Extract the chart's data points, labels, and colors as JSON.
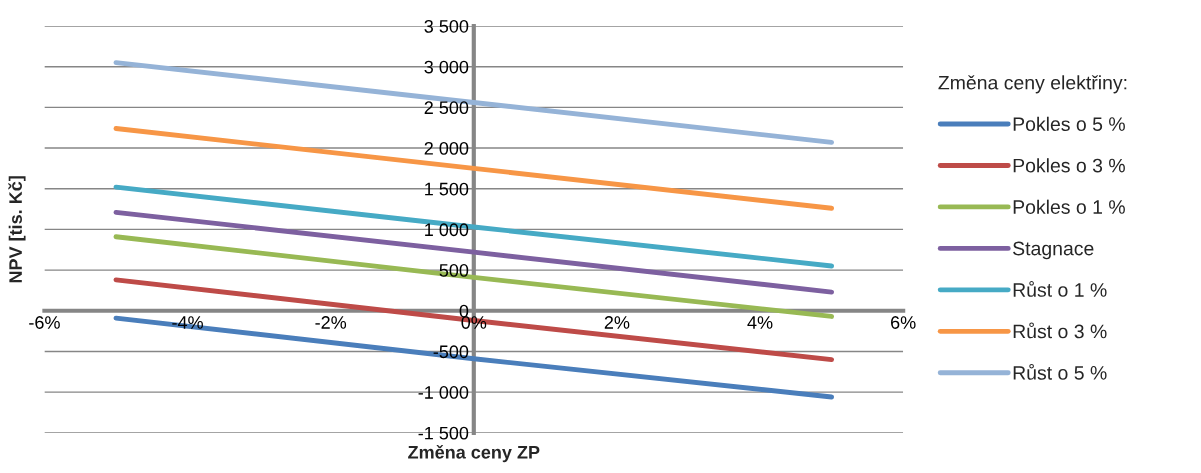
{
  "chart_data": {
    "type": "line",
    "xlabel": "Změna ceny ZP",
    "ylabel": "NPV [tis. Kč]",
    "legend_title": "Změna ceny elektřiny:",
    "legend": "right",
    "grid": "y",
    "marker": "none",
    "line_style": "solid",
    "x": [
      -5,
      0,
      5
    ],
    "series": [
      {
        "name": "Pokles o 5 %",
        "color": "#4a7ebb",
        "values": [
          -90,
          -590,
          -1060
        ]
      },
      {
        "name": "Pokles o 3 %",
        "color": "#be4b48",
        "values": [
          380,
          -120,
          -600
        ]
      },
      {
        "name": "Pokles o 1 %",
        "color": "#98b954",
        "values": [
          910,
          410,
          -70
        ]
      },
      {
        "name": "Stagnace",
        "color": "#7d60a0",
        "values": [
          1210,
          720,
          230
        ]
      },
      {
        "name": "Růst o 1 %",
        "color": "#46aac5",
        "values": [
          1520,
          1030,
          550
        ]
      },
      {
        "name": "Růst o 3 %",
        "color": "#f79646",
        "values": [
          2240,
          1750,
          1260
        ]
      },
      {
        "name": "Růst o 5 %",
        "color": "#95b3d7",
        "values": [
          3050,
          2560,
          2070
        ]
      }
    ],
    "xlim": [
      -6,
      6
    ],
    "xticks": [
      {
        "value": -6,
        "label": "-6%"
      },
      {
        "value": -4,
        "label": "-4%"
      },
      {
        "value": -2,
        "label": "-2%"
      },
      {
        "value": 0,
        "label": "0%"
      },
      {
        "value": 2,
        "label": "2%"
      },
      {
        "value": 4,
        "label": "4%"
      },
      {
        "value": 6,
        "label": "6%"
      }
    ],
    "ylim": [
      -1500,
      3500
    ],
    "yticks": [
      {
        "value": -1500,
        "label": "-1 500"
      },
      {
        "value": -1000,
        "label": "-1 000"
      },
      {
        "value": -500,
        "label": "-500"
      },
      0,
      500,
      {
        "value": 1000,
        "label": "1 000"
      },
      {
        "value": 1500,
        "label": "1 500"
      },
      {
        "value": 2000,
        "label": "2 000"
      },
      {
        "value": 2500,
        "label": "2 500"
      },
      {
        "value": 3000,
        "label": "3 000"
      },
      {
        "value": 3500,
        "label": "3 500"
      }
    ]
  }
}
